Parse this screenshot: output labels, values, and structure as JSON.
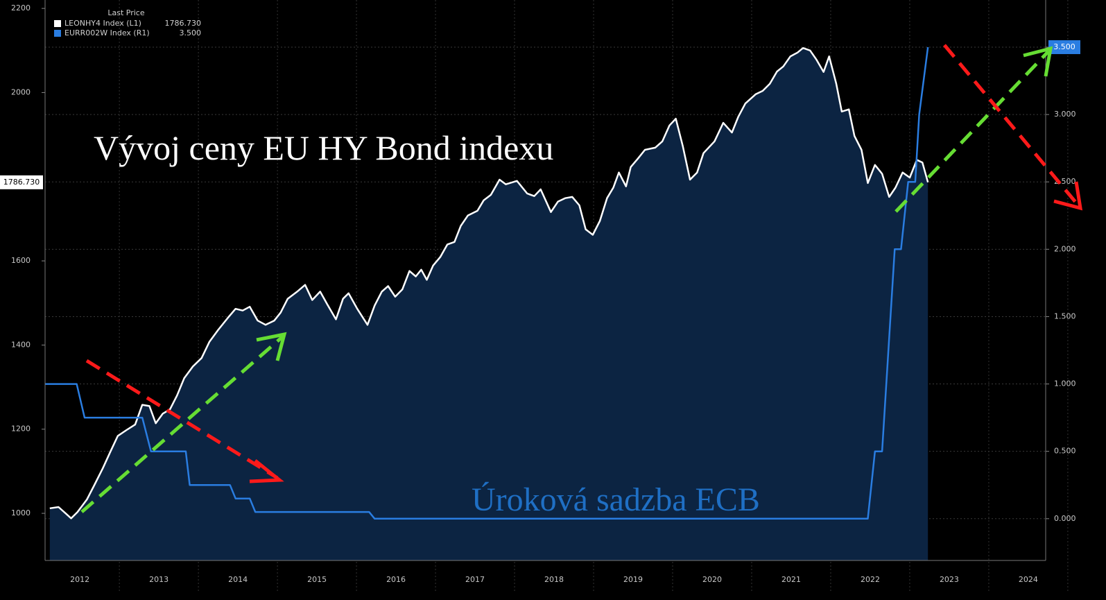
{
  "chart_data": {
    "type": "line",
    "legend_title": "Last Price",
    "annotations": [
      {
        "text": "Vývoj ceny EU HY Bond indexu",
        "color": "#ffffff"
      },
      {
        "text": "Úroková sadzba ECB",
        "color": "#1f6fc4"
      }
    ],
    "xlim": [
      2012.06,
      2024.72
    ],
    "xticks": [
      {
        "value": 2012.5,
        "label": "2012"
      },
      {
        "value": 2013.5,
        "label": "2013"
      },
      {
        "value": 2014.5,
        "label": "2014"
      },
      {
        "value": 2015.5,
        "label": "2015"
      },
      {
        "value": 2016.5,
        "label": "2016"
      },
      {
        "value": 2017.5,
        "label": "2017"
      },
      {
        "value": 2018.5,
        "label": "2018"
      },
      {
        "value": 2019.5,
        "label": "2019"
      },
      {
        "value": 2020.5,
        "label": "2020"
      },
      {
        "value": 2021.5,
        "label": "2021"
      },
      {
        "value": 2022.5,
        "label": "2022"
      },
      {
        "value": 2023.5,
        "label": "2023"
      },
      {
        "value": 2024.5,
        "label": "2024"
      }
    ],
    "ylim": [
      888,
      2220
    ],
    "yticks": [
      1000,
      1200,
      1400,
      1600,
      2000,
      2200
    ],
    "y2lim": [
      -0.31,
      3.85
    ],
    "y2ticks": [
      {
        "value": 0,
        "label": "0.000"
      },
      {
        "value": 0.5,
        "label": "0.500"
      },
      {
        "value": 1,
        "label": "1.000"
      },
      {
        "value": 1.5,
        "label": "1.500"
      },
      {
        "value": 2,
        "label": "2.000"
      },
      {
        "value": 2.5,
        "label": "2.500"
      },
      {
        "value": 3,
        "label": "3.000"
      },
      {
        "value": 3.5,
        "label": "3.500"
      }
    ],
    "grid": true,
    "series": [
      {
        "name": "LEONHY4 Index  (L1)",
        "color": "#ffffff",
        "fill": "#0c2442",
        "last_label": "1786.730",
        "x": [
          2012.12,
          2012.23,
          2012.32,
          2012.39,
          2012.47,
          2012.59,
          2012.68,
          2012.79,
          2012.89,
          2012.98,
          2013.09,
          2013.2,
          2013.29,
          2013.38,
          2013.46,
          2013.55,
          2013.64,
          2013.73,
          2013.82,
          2013.93,
          2014.04,
          2014.14,
          2014.25,
          2014.37,
          2014.47,
          2014.56,
          2014.65,
          2014.75,
          2014.85,
          2014.96,
          2015.04,
          2015.13,
          2015.25,
          2015.35,
          2015.44,
          2015.54,
          2015.63,
          2015.74,
          2015.83,
          2015.9,
          2016.01,
          2016.14,
          2016.23,
          2016.32,
          2016.4,
          2016.49,
          2016.58,
          2016.67,
          2016.75,
          2016.82,
          2016.89,
          2016.97,
          2017.06,
          2017.15,
          2017.24,
          2017.32,
          2017.41,
          2017.53,
          2017.61,
          2017.7,
          2017.81,
          2017.89,
          2018.03,
          2018.16,
          2018.25,
          2018.33,
          2018.46,
          2018.55,
          2018.64,
          2018.73,
          2018.82,
          2018.9,
          2018.99,
          2019.08,
          2019.17,
          2019.25,
          2019.32,
          2019.41,
          2019.47,
          2019.56,
          2019.65,
          2019.78,
          2019.87,
          2019.96,
          2020.04,
          2020.13,
          2020.22,
          2020.31,
          2020.39,
          2020.53,
          2020.64,
          2020.75,
          2020.83,
          2020.92,
          2021.05,
          2021.14,
          2021.23,
          2021.32,
          2021.4,
          2021.49,
          2021.58,
          2021.65,
          2021.74,
          2021.82,
          2021.91,
          2021.98,
          2022.07,
          2022.14,
          2022.23,
          2022.3,
          2022.39,
          2022.47,
          2022.56,
          2022.65,
          2022.74,
          2022.82,
          2022.91,
          2023.0,
          2023.09,
          2023.16,
          2023.23
        ],
        "values": [
          1012,
          1015,
          1000,
          988,
          1003,
          1033,
          1066,
          1107,
          1148,
          1184,
          1198,
          1211,
          1258,
          1255,
          1214,
          1237,
          1247,
          1280,
          1321,
          1349,
          1369,
          1408,
          1436,
          1464,
          1486,
          1482,
          1491,
          1458,
          1448,
          1458,
          1477,
          1510,
          1527,
          1543,
          1507,
          1527,
          1497,
          1461,
          1510,
          1523,
          1486,
          1448,
          1494,
          1527,
          1540,
          1515,
          1532,
          1576,
          1563,
          1579,
          1555,
          1589,
          1609,
          1639,
          1645,
          1683,
          1708,
          1719,
          1744,
          1757,
          1793,
          1782,
          1790,
          1760,
          1754,
          1770,
          1716,
          1741,
          1749,
          1752,
          1732,
          1675,
          1662,
          1695,
          1749,
          1774,
          1810,
          1777,
          1823,
          1843,
          1864,
          1869,
          1884,
          1922,
          1938,
          1872,
          1793,
          1810,
          1856,
          1884,
          1928,
          1905,
          1942,
          1974,
          1996,
          2004,
          2021,
          2050,
          2062,
          2086,
          2095,
          2106,
          2100,
          2078,
          2049,
          2086,
          2021,
          1955,
          1960,
          1897,
          1864,
          1785,
          1828,
          1807,
          1752,
          1774,
          1810,
          1798,
          1840,
          1834,
          1786.73
        ]
      },
      {
        "name": "EURR002W Index  (R1)",
        "color": "#2a7de1",
        "axis": "y2",
        "last_label": "3.500",
        "x": [
          2012.06,
          2012.46,
          2012.56,
          2013.29,
          2013.4,
          2013.84,
          2013.89,
          2014.4,
          2014.47,
          2014.65,
          2014.72,
          2016.16,
          2016.23,
          2022.47,
          2022.56,
          2022.65,
          2022.81,
          2022.89,
          2022.98,
          2023.07,
          2023.12,
          2023.23
        ],
        "values": [
          1,
          1,
          0.75,
          0.75,
          0.5,
          0.5,
          0.25,
          0.25,
          0.15,
          0.15,
          0.05,
          0.05,
          0,
          0,
          0.5,
          0.5,
          2,
          2,
          2.5,
          2.5,
          3,
          3.5
        ]
      }
    ]
  }
}
